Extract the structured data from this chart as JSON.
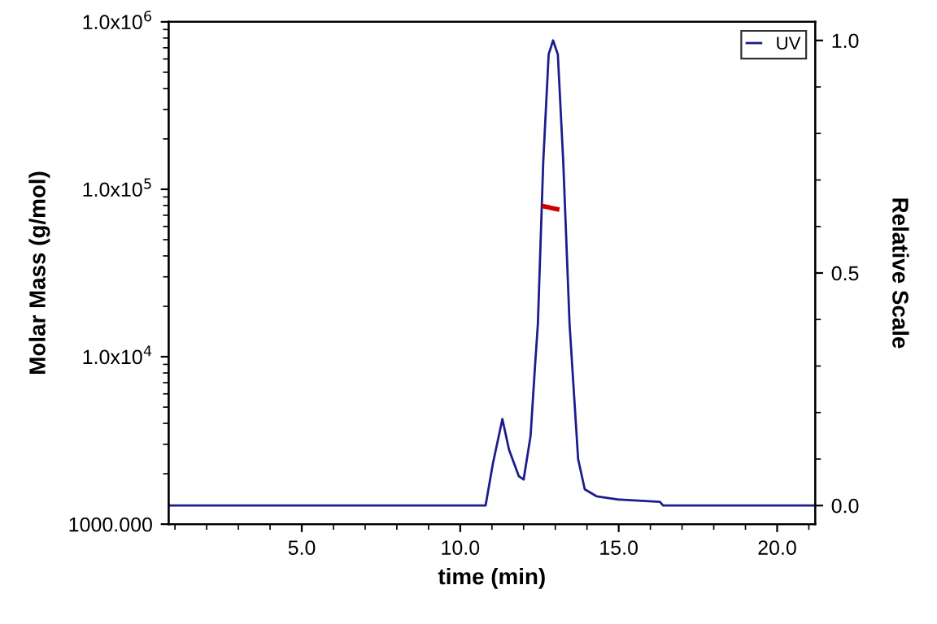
{
  "chart_data": {
    "type": "line",
    "xlabel": "time (min)",
    "ylabel": "Molar Mass (g/mol)",
    "y2label": "Relative Scale",
    "xlim": [
      0.8,
      21.2
    ],
    "xticks": [
      {
        "value": 5,
        "label": "5.0"
      },
      {
        "value": 10,
        "label": "10.0"
      },
      {
        "value": 15,
        "label": "15.0"
      },
      {
        "value": 20,
        "label": "20.0"
      }
    ],
    "log": "y",
    "ylim": [
      1000,
      1000000
    ],
    "yticks": [
      {
        "value": 1000,
        "label": "1000.000"
      },
      {
        "value": 10000,
        "label": "1.0x10$^{4}$"
      },
      {
        "value": 100000,
        "label": "1.0x10$^{5}$"
      },
      {
        "value": 1000000,
        "label": "1.0x10$^{6}$"
      }
    ],
    "y2lim": [
      -0.04,
      1.04
    ],
    "y2ticks": [
      {
        "value": 0,
        "label": "0.0"
      },
      {
        "value": 0.5,
        "label": "0.5"
      },
      {
        "value": 1,
        "label": "1.0"
      }
    ],
    "grid": false,
    "legend": "top right",
    "marker": "none",
    "line_style": "solid",
    "series": [
      {
        "name": "UV",
        "color": "#1c1c8c",
        "axis": "y2",
        "x": [
          0.8,
          10.8,
          11.03,
          11.33,
          11.54,
          11.85,
          12.0,
          12.22,
          12.36,
          12.45,
          12.62,
          12.79,
          12.93,
          13.08,
          13.25,
          13.45,
          13.72,
          13.93,
          14.3,
          15.0,
          16.3,
          16.4,
          21.2
        ],
        "values": [
          0.0,
          0.0,
          0.09,
          0.186,
          0.12,
          0.063,
          0.056,
          0.15,
          0.3,
          0.39,
          0.74,
          0.97,
          1.0,
          0.97,
          0.74,
          0.39,
          0.1,
          0.035,
          0.02,
          0.013,
          0.008,
          0.0,
          0.0
        ]
      },
      {
        "color": "#cc0000",
        "axis": "y",
        "x": [
          12.65,
          12.8,
          12.9,
          13.06
        ],
        "values": [
          79000,
          78000,
          77000,
          76000
        ]
      }
    ]
  }
}
